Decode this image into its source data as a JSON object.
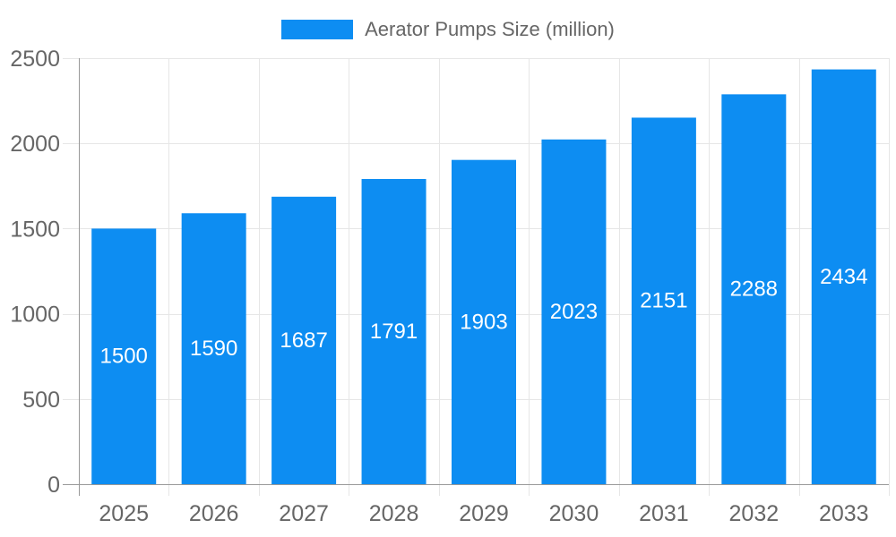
{
  "window": {
    "background": "#ffffff"
  },
  "legend": {
    "label": "Aerator Pumps Size (million)",
    "position": "top-center"
  },
  "chart_data": {
    "type": "bar",
    "title": "",
    "xlabel": "",
    "ylabel": "",
    "categories": [
      "2025",
      "2026",
      "2027",
      "2028",
      "2029",
      "2030",
      "2031",
      "2032",
      "2033"
    ],
    "series": [
      {
        "name": "Aerator Pumps Size (million)",
        "values": [
          1500,
          1590,
          1687,
          1791,
          1903,
          2023,
          2151,
          2288,
          2434
        ]
      }
    ],
    "ylim": [
      0,
      2500
    ],
    "yticks": [
      0,
      500,
      1000,
      1500,
      2000,
      2500
    ],
    "grid": "both",
    "legend_position": "top-center",
    "value_labels": "white, centered inside bars",
    "colors": {
      "bar": "#0d8df2",
      "grid": "#e6e6e6",
      "axis": "#999999",
      "tick_label": "#666666",
      "legend_text": "#666666",
      "value_label": "#ffffff",
      "background": "#ffffff"
    }
  }
}
